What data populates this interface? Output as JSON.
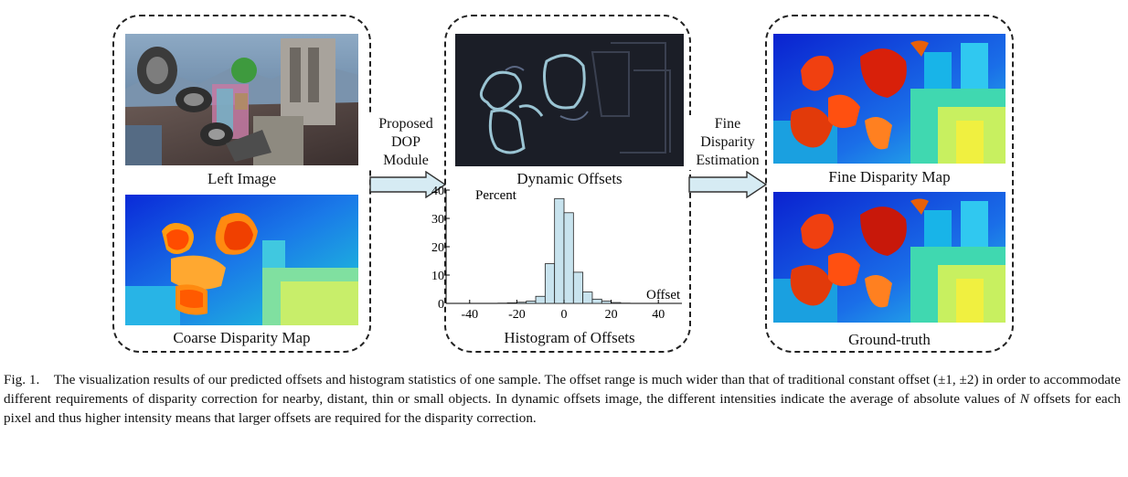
{
  "panels": {
    "left": {
      "top_caption": "Left Image",
      "bottom_caption": "Coarse Disparity Map"
    },
    "middle": {
      "top_caption": "Dynamic Offsets",
      "bottom_caption": "Histogram of Offsets"
    },
    "right": {
      "top_caption": "Fine Disparity Map",
      "bottom_caption": "Ground-truth"
    }
  },
  "arrows": {
    "first_label": [
      "Proposed",
      "DOP",
      "Module"
    ],
    "second_label": [
      "Fine",
      "Disparity",
      "Estimation"
    ]
  },
  "chart_data": {
    "type": "bar",
    "title": "Histogram of Offsets",
    "ylabel": "Percent",
    "xlabel": "Offset",
    "x_ticks": [
      -40,
      -20,
      0,
      20,
      40
    ],
    "y_ticks": [
      0,
      10,
      20,
      30,
      40
    ],
    "xlim": [
      -50,
      50
    ],
    "ylim": [
      0,
      40
    ],
    "bin_width": 4,
    "bin_centers": [
      -26,
      -22,
      -18,
      -14,
      -10,
      -6,
      -2,
      2,
      6,
      10,
      14,
      18,
      22,
      26
    ],
    "values": [
      0.1,
      0.2,
      0.4,
      0.8,
      2.5,
      14,
      37,
      32,
      11,
      4,
      1.5,
      0.8,
      0.3,
      0.1
    ],
    "bar_color": "#c8e3ee"
  },
  "caption": {
    "label": "Fig. 1.",
    "text_parts": [
      "The visualization results of our predicted offsets and histogram statistics of one sample. The offset range is much wider than that of traditional constant offset (±1, ±2) in order to accommodate different requirements of disparity correction for nearby, distant, thin or small objects. In dynamic offsets image, the different intensities indicate the average of absolute values of ",
      "N",
      " offsets for each pixel and thus higher intensity means that larger offsets are required for the disparity correction."
    ]
  },
  "colors": {
    "arrow_fill": "#d6ebf3",
    "arrow_stroke": "#333333"
  }
}
